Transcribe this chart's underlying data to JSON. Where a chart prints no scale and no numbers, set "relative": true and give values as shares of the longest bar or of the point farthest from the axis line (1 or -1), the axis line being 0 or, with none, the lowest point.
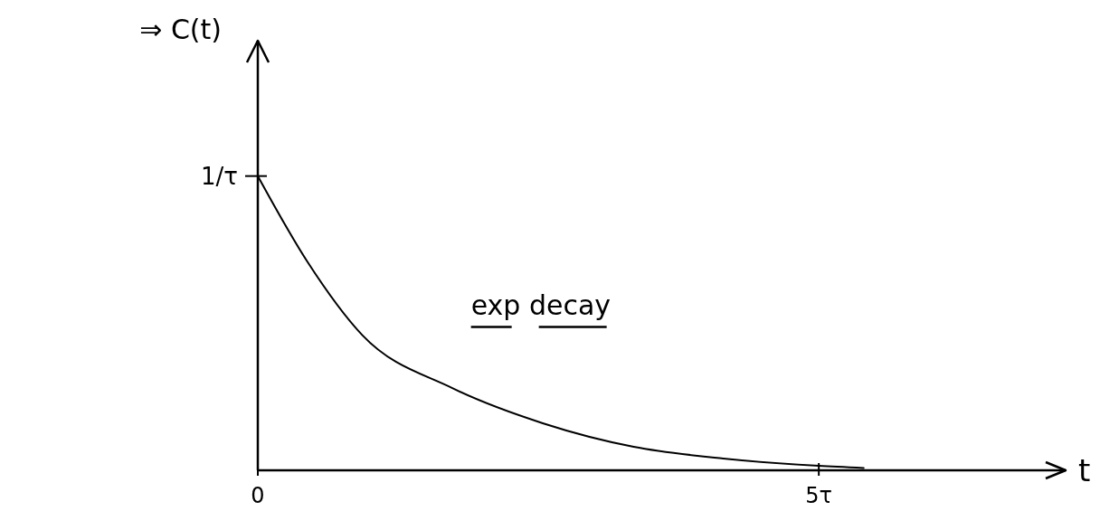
{
  "chart_data": {
    "type": "line",
    "xlabel": "t",
    "ylabel": "⇒ C(t)",
    "relative": true,
    "x": [
      0,
      0.44,
      0.93,
      1.73,
      2.54,
      3.35,
      4.15,
      5,
      5.4
    ],
    "values": [
      1,
      0.71,
      0.46,
      0.28,
      0.16,
      0.08,
      0.04,
      0.015,
      0.008
    ],
    "xlim": [
      0,
      7.2
    ],
    "xticks": [
      {
        "value": 0,
        "label": "0"
      },
      {
        "value": 5,
        "label": "5τ"
      }
    ],
    "annotations": [
      "1/τ",
      "exp decay"
    ]
  }
}
